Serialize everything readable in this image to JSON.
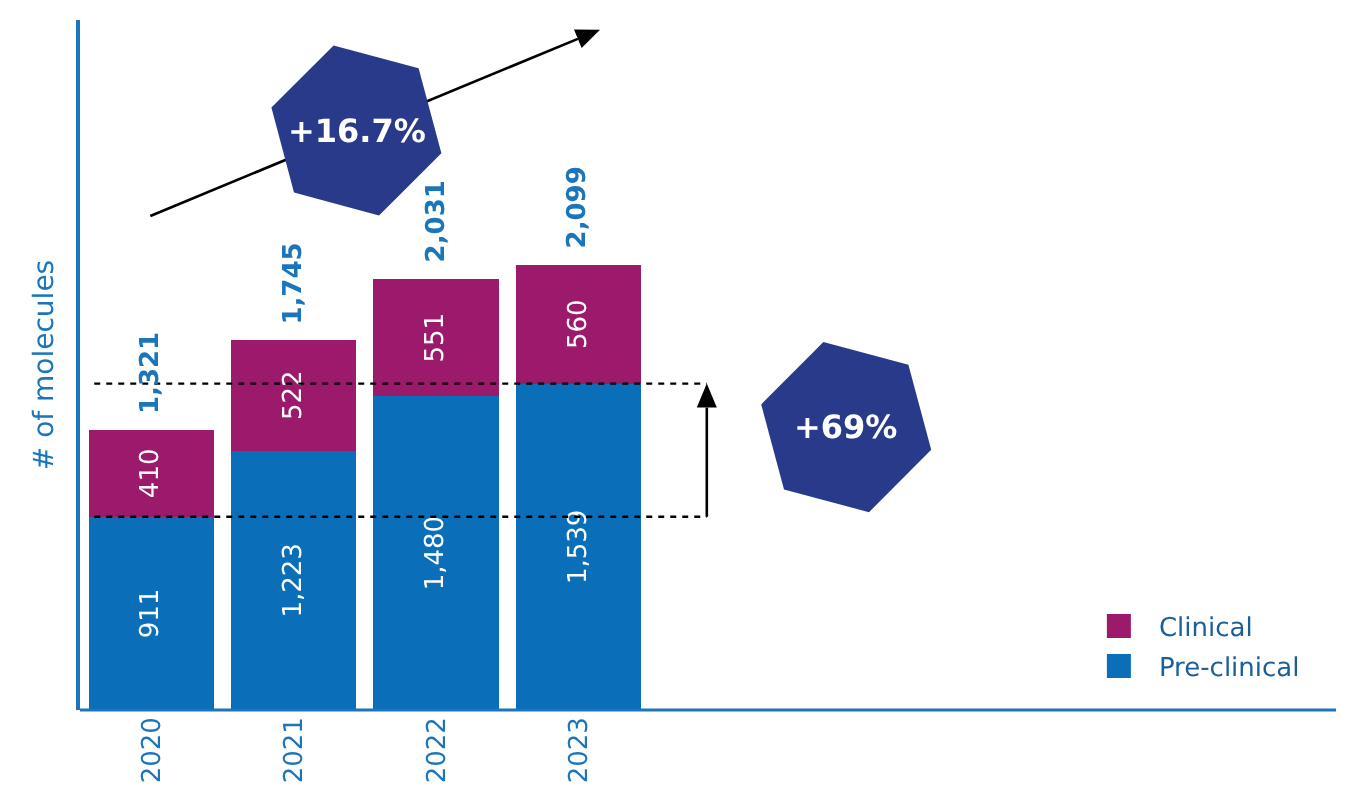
{
  "chart_data": {
    "type": "bar",
    "stacked": true,
    "ylabel": "# of molecules",
    "categories": [
      "2020",
      "2021",
      "2022",
      "2023"
    ],
    "series": [
      {
        "name": "Pre-clinical",
        "color": "#0a6fb8",
        "values": [
          911,
          1223,
          1480,
          1539
        ],
        "value_labels": [
          "911",
          "1,223",
          "1,480",
          "1,539"
        ]
      },
      {
        "name": "Clinical",
        "color": "#9c1a6c",
        "values": [
          410,
          522,
          551,
          560
        ],
        "value_labels": [
          "410",
          "522",
          "551",
          "560"
        ]
      }
    ],
    "totals": [
      "1,321",
      "1,745",
      "2,031",
      "2,099"
    ],
    "annotations": [
      "+16.7%",
      "+69%"
    ],
    "ref_lines": [
      {
        "axis": "y",
        "value": 911,
        "color": "#000000",
        "line_style": "dotted"
      },
      {
        "axis": "y",
        "value": 1539,
        "color": "#000000",
        "line_style": "dotted"
      }
    ],
    "legend": "bottom right",
    "grid": false
  }
}
